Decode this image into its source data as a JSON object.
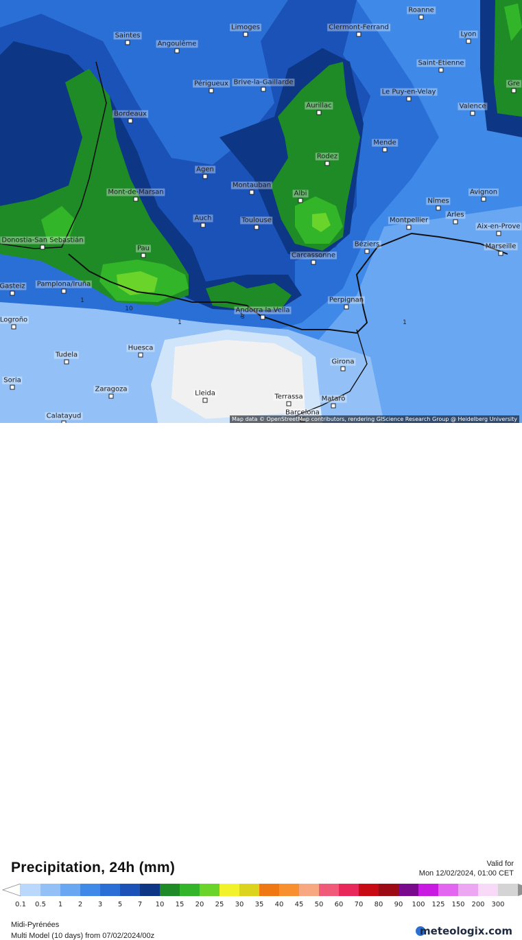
{
  "map": {
    "title": "Precipitation, 24h (mm)",
    "valid_label": "Valid for",
    "valid_date": "Mon 12/02/2024, 01:00 CET",
    "region": "Midi-Pyrénées",
    "model": "Multi Model (10 days) from 07/02/2024/00z",
    "brand": "meteologix.com",
    "attribution": "Map data © OpenStreetMap contributors, rendering GIScience Research Group @ Heidelberg University",
    "cities": [
      {
        "name": "Saintes"
      },
      {
        "name": "Angoulême"
      },
      {
        "name": "Limoges"
      },
      {
        "name": "Clermont-Ferrand"
      },
      {
        "name": "Roanne"
      },
      {
        "name": "Lyon"
      },
      {
        "name": "Saint-Etienne"
      },
      {
        "name": "Périgueux"
      },
      {
        "name": "Brive-la-Gaillarde"
      },
      {
        "name": "Le Puy-en-Velay"
      },
      {
        "name": "Bordeaux"
      },
      {
        "name": "Aurillac"
      },
      {
        "name": "Valence"
      },
      {
        "name": "Mende"
      },
      {
        "name": "Agen"
      },
      {
        "name": "Rodez"
      },
      {
        "name": "Mont-de-Marsan"
      },
      {
        "name": "Montauban"
      },
      {
        "name": "Albi"
      },
      {
        "name": "Avignon"
      },
      {
        "name": "Nîmes"
      },
      {
        "name": "Arles"
      },
      {
        "name": "Auch"
      },
      {
        "name": "Toulouse"
      },
      {
        "name": "Montpellier"
      },
      {
        "name": "Aix-en-Prove"
      },
      {
        "name": "Donostia-San Sebastián"
      },
      {
        "name": "Pau"
      },
      {
        "name": "Béziers"
      },
      {
        "name": "Marseille"
      },
      {
        "name": "Carcassonne"
      },
      {
        "name": "Gasteiz"
      },
      {
        "name": "Pamplona/Iruña"
      },
      {
        "name": "Perpignan"
      },
      {
        "name": "Andorra la Vella"
      },
      {
        "name": "Logroño"
      },
      {
        "name": "Tudela"
      },
      {
        "name": "Huesca"
      },
      {
        "name": "Girona"
      },
      {
        "name": "Soria"
      },
      {
        "name": "Zaragoza"
      },
      {
        "name": "Lleida"
      },
      {
        "name": "Terrassa"
      },
      {
        "name": "Mataró"
      },
      {
        "name": "Barcelona"
      },
      {
        "name": "Calatayud"
      },
      {
        "name": "Gre"
      }
    ],
    "contour_labels": [
      "10",
      "1",
      "1",
      "1",
      "1",
      "3"
    ]
  },
  "legend": {
    "thresholds": [
      "0.1",
      "0.5",
      "1",
      "2",
      "3",
      "5",
      "7",
      "10",
      "15",
      "20",
      "25",
      "30",
      "35",
      "40",
      "45",
      "50",
      "60",
      "70",
      "80",
      "90",
      "100",
      "125",
      "150",
      "200",
      "300"
    ],
    "colors": [
      "#b9d8fb",
      "#93c1f7",
      "#6aa7f2",
      "#3f8ae8",
      "#2a6fd6",
      "#1a52b8",
      "#0d3784",
      "#1f8b26",
      "#33b52a",
      "#6ad42a",
      "#f2f22a",
      "#dcd41c",
      "#f07812",
      "#f89030",
      "#f8a880",
      "#f05a78",
      "#e8285a",
      "#c80a14",
      "#9c0a14",
      "#7a0a8c",
      "#c81ae0",
      "#e266f0",
      "#eca6f2",
      "#f8daf8",
      "#d4d4d4"
    ],
    "under_color": "#ffffff",
    "over_color": "#909090"
  }
}
